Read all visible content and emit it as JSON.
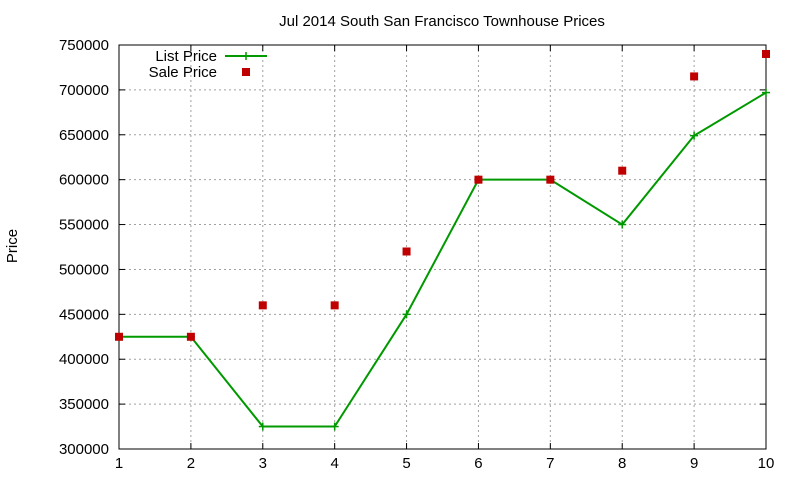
{
  "chart_data": {
    "type": "line",
    "title": "Jul 2014 South San Francisco Townhouse Prices",
    "xlabel": "",
    "ylabel": "Price",
    "xlim": [
      1,
      10
    ],
    "ylim": [
      300000,
      750000
    ],
    "xticks": [
      1,
      2,
      3,
      4,
      5,
      6,
      7,
      8,
      9,
      10
    ],
    "yticks": [
      300000,
      350000,
      400000,
      450000,
      500000,
      550000,
      600000,
      650000,
      700000,
      750000
    ],
    "grid": true,
    "legend_position": "top-left",
    "x": [
      1,
      2,
      3,
      4,
      5,
      6,
      7,
      8,
      9,
      10
    ],
    "series": [
      {
        "name": "List Price",
        "style": "linespoints",
        "color": "#009900",
        "values": [
          425000,
          425000,
          325000,
          325000,
          450000,
          600000,
          600000,
          550000,
          649000,
          697000
        ]
      },
      {
        "name": "Sale Price",
        "style": "points",
        "color": "#c00000",
        "values": [
          425000,
          425000,
          460000,
          460000,
          520000,
          600000,
          600000,
          610000,
          715000,
          740000
        ]
      }
    ]
  }
}
